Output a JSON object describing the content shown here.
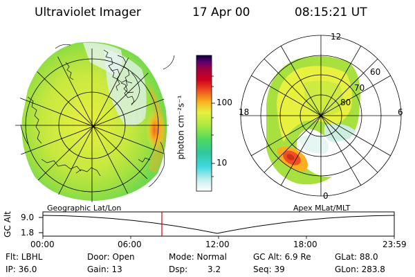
{
  "header": {
    "instrument": "Ultraviolet Imager",
    "date": "17 Apr 00",
    "time": "08:15:21 UT"
  },
  "colorbar": {
    "unit": "photon cm⁻²s⁻¹",
    "ticks": [
      "100",
      "10"
    ],
    "colors": [
      "#ffffff",
      "#c8f0f0",
      "#40d8e0",
      "#30c8a0",
      "#50d860",
      "#a8e840",
      "#e8f040",
      "#f8b020",
      "#f05020",
      "#d00020",
      "#a00040",
      "#600070",
      "#100040"
    ]
  },
  "left_panel": {
    "label": "Geographic Lat/Lon"
  },
  "right_panel": {
    "label": "Apex MLat/MLT",
    "mlt_labels": [
      "12",
      "18",
      "6",
      "0"
    ],
    "lat_labels": [
      "60",
      "70",
      "80"
    ]
  },
  "altitude_plot": {
    "ylabel": "GC Alt",
    "yticks": [
      "9.0",
      "1.8"
    ],
    "xticks": [
      "00:00",
      "06:00",
      "12:00",
      "18:00",
      "23:59"
    ],
    "marker_time": "08:15",
    "marker_color": "#d00000"
  },
  "footer": {
    "row1": [
      "Flt: LBHL",
      "Door: Open",
      "Mode: Normal",
      "GC Alt: 6.9 Re",
      "GLat: 88.0"
    ],
    "row2": [
      "IP: 36.0",
      "Gain: 13",
      "Dsp:",
      "3.2",
      "Seq: 39",
      "GLon: 283.8"
    ]
  }
}
